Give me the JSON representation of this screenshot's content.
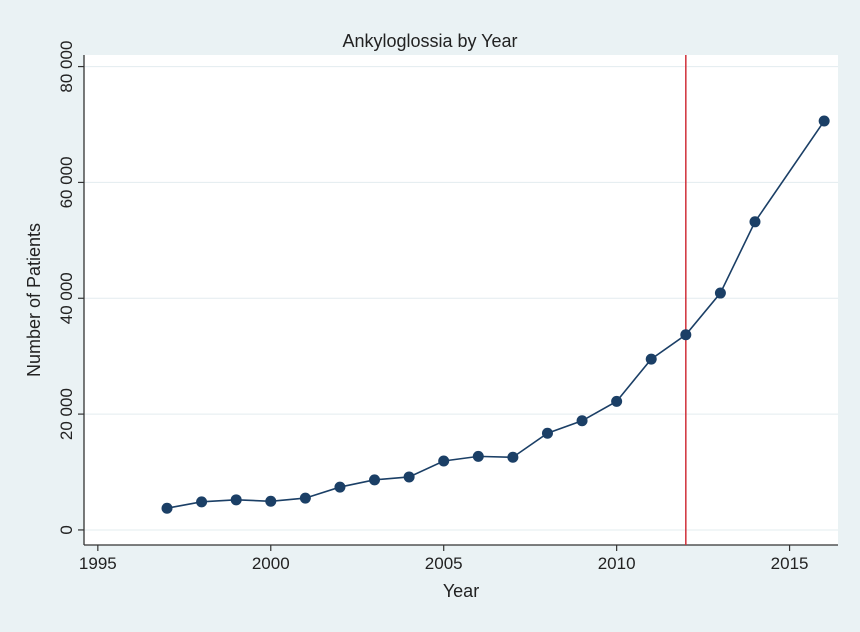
{
  "chart_data": {
    "type": "line",
    "title": "Ankyloglossia by Year",
    "xlabel": "Year",
    "ylabel": "Number of Patients",
    "x": [
      1997,
      1998,
      1999,
      2000,
      2001,
      2002,
      2003,
      2004,
      2005,
      2006,
      2007,
      2008,
      2009,
      2010,
      2011,
      2012,
      2013,
      2014,
      2016
    ],
    "series": [
      {
        "name": "Number of Patients",
        "values": [
          3750,
          4850,
          5200,
          4950,
          5500,
          7400,
          8650,
          9150,
          11900,
          12700,
          12550,
          16700,
          18850,
          22200,
          29500,
          33700,
          40900,
          53200,
          70600
        ]
      }
    ],
    "xlim": [
      1994.6,
      2016.4
    ],
    "ylim": [
      -2600,
      82000
    ],
    "xticks": [
      1995,
      2000,
      2005,
      2010,
      2015
    ],
    "yticks": [
      0,
      20000,
      40000,
      60000,
      80000
    ],
    "ytick_labels": [
      "0",
      "20 000",
      "40 000",
      "60 000",
      "80 000"
    ],
    "grid": true,
    "reference_line": {
      "x": 2012,
      "color": "#d0303a"
    },
    "series_color": "#1b3f66"
  }
}
